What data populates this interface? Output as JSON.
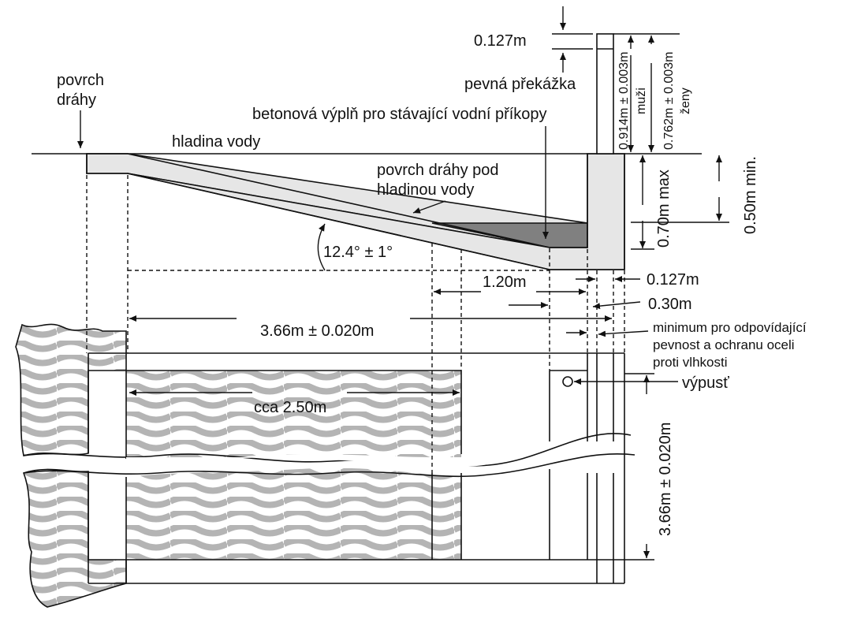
{
  "labels": {
    "track_surface": [
      "povrch",
      "dráhy"
    ],
    "water_level": "hladina vody",
    "track_under_water": [
      "povrch dráhy pod",
      "hladinou vody"
    ],
    "concrete_fill": "betonová výplň pro stávající vodní příkopy",
    "fixed_barrier": "pevná překážka",
    "angle": "12.4° ± 1°",
    "dim_barrier_thickness_top": "0.127m",
    "dim_men_height": "0.914m ± 0.003m",
    "men": "muži",
    "dim_women_height": "0.762m ± 0.003m",
    "women": "ženy",
    "dim_depth_max": "0.70m max",
    "dim_depth_min": "0.50m min.",
    "dim_1_20": "1.20m",
    "dim_0_127_right": "0.127m",
    "dim_0_30": "0.30m",
    "dim_length": "3.66m ± 0.020m",
    "minimum_note": [
      "minimum pro odpovídající",
      "pevnost a ochranu oceli",
      "proti vlhkosti"
    ],
    "outlet": "výpusť",
    "dim_2_50": "cca 2.50m",
    "dim_width": "3.66m ± 0.020m"
  },
  "colors": {
    "line": "#111111",
    "concrete_light": "#e6e6e6",
    "concrete_dark": "#808080",
    "stone_wave": "#b4b4b4"
  }
}
